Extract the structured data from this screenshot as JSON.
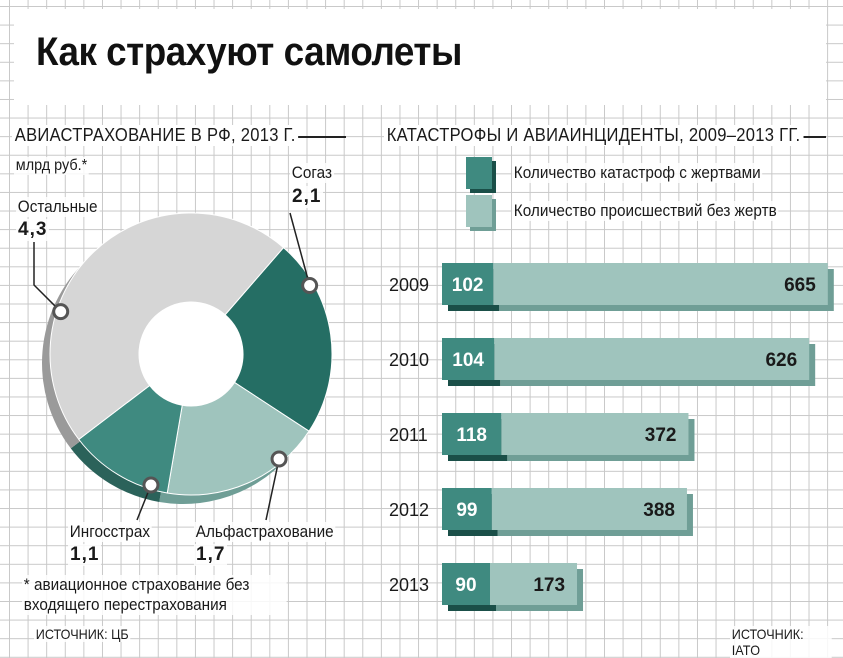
{
  "title": "Как страхуют самолеты",
  "colors": {
    "dark_teal": "#256e64",
    "teal": "#3f8a80",
    "light_teal": "#9fc4bd",
    "light_gray": "#d6d6d6",
    "dark_teal_shadow": "#1a4f48",
    "light_teal_shadow": "#6f9e96",
    "gray_shadow": "#9a9a9a"
  },
  "chart_data": [
    {
      "type": "pie",
      "title": "АВИАСТРАХОВАНИЕ В РФ, 2013 Г.",
      "unit": "млрд руб.*",
      "slices": [
        {
          "label": "Согаз",
          "value": 2.1,
          "value_text": "2,1",
          "color": "#256e64"
        },
        {
          "label": "Альфастрахование",
          "value": 1.7,
          "value_text": "1,7",
          "color": "#9fc4bd"
        },
        {
          "label": "Ингосстрах",
          "value": 1.1,
          "value_text": "1,1",
          "color": "#3f8a80"
        },
        {
          "label": "Остальные",
          "value": 4.3,
          "value_text": "4,3",
          "color": "#d6d6d6"
        }
      ],
      "footnote": "* авиационное страхование без входящего перестрахования",
      "source": "ИСТОЧНИК: ЦБ"
    },
    {
      "type": "bar",
      "stacked": true,
      "orientation": "horizontal",
      "title": "КАТАСТРОФЫ И АВИАИНЦИДЕНТЫ, 2009–2013 ГГ.",
      "categories": [
        "2009",
        "2010",
        "2011",
        "2012",
        "2013"
      ],
      "series": [
        {
          "name": "Количество катастроф с жертвами",
          "values": [
            102,
            104,
            118,
            99,
            90
          ],
          "color": "#3f8a80"
        },
        {
          "name": "Количество происшествий без жертв",
          "values": [
            665,
            626,
            372,
            388,
            173
          ],
          "color": "#9fc4bd"
        }
      ],
      "source": "ИСТОЧНИК: IATO"
    }
  ]
}
